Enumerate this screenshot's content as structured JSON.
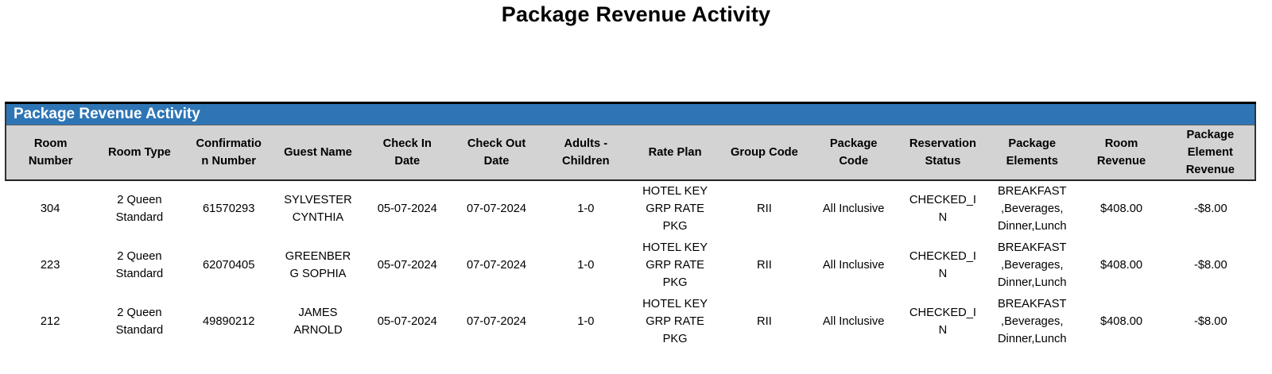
{
  "title": "Package Revenue Activity",
  "panel": {
    "banner": "Package Revenue Activity"
  },
  "table": {
    "headers": [
      "Room Number",
      "Room Type",
      "Confirmation Number",
      "Guest Name",
      "Check In Date",
      "Check Out Date",
      "Adults - Children",
      "Rate Plan",
      "Group Code",
      "Package Code",
      "Reservation Status",
      "Package Elements",
      "Room Revenue",
      "Package Element Revenue"
    ],
    "rows": [
      [
        "304",
        "2 Queen Standard",
        "61570293",
        "SYLVESTER CYNTHIA",
        "05-07-2024",
        "07-07-2024",
        "1-0",
        "HOTEL KEY GRP RATE PKG",
        "RII",
        "All Inclusive",
        "CHECKED_IN",
        "BREAKFAST ,Beverages, Dinner,Lunch",
        "$408.00",
        "-$8.00"
      ],
      [
        "223",
        "2 Queen Standard",
        "62070405",
        "GREENBERG SOPHIA",
        "05-07-2024",
        "07-07-2024",
        "1-0",
        "HOTEL KEY GRP RATE PKG",
        "RII",
        "All Inclusive",
        "CHECKED_IN",
        "BREAKFAST ,Beverages, Dinner,Lunch",
        "$408.00",
        "-$8.00"
      ],
      [
        "212",
        "2 Queen Standard",
        "49890212",
        "JAMES ARNOLD",
        "05-07-2024",
        "07-07-2024",
        "1-0",
        "HOTEL KEY GRP RATE PKG",
        "RII",
        "All Inclusive",
        "CHECKED_IN",
        "BREAKFAST ,Beverages, Dinner,Lunch",
        "$408.00",
        "-$8.00"
      ]
    ]
  },
  "colors": {
    "banner_bg": "#2E75B6",
    "banner_text": "#FFFFFF",
    "header_bg": "#D3D3D3",
    "body_bg": "#FFFFFF",
    "text": "#000000",
    "border_dark": "#222222"
  }
}
